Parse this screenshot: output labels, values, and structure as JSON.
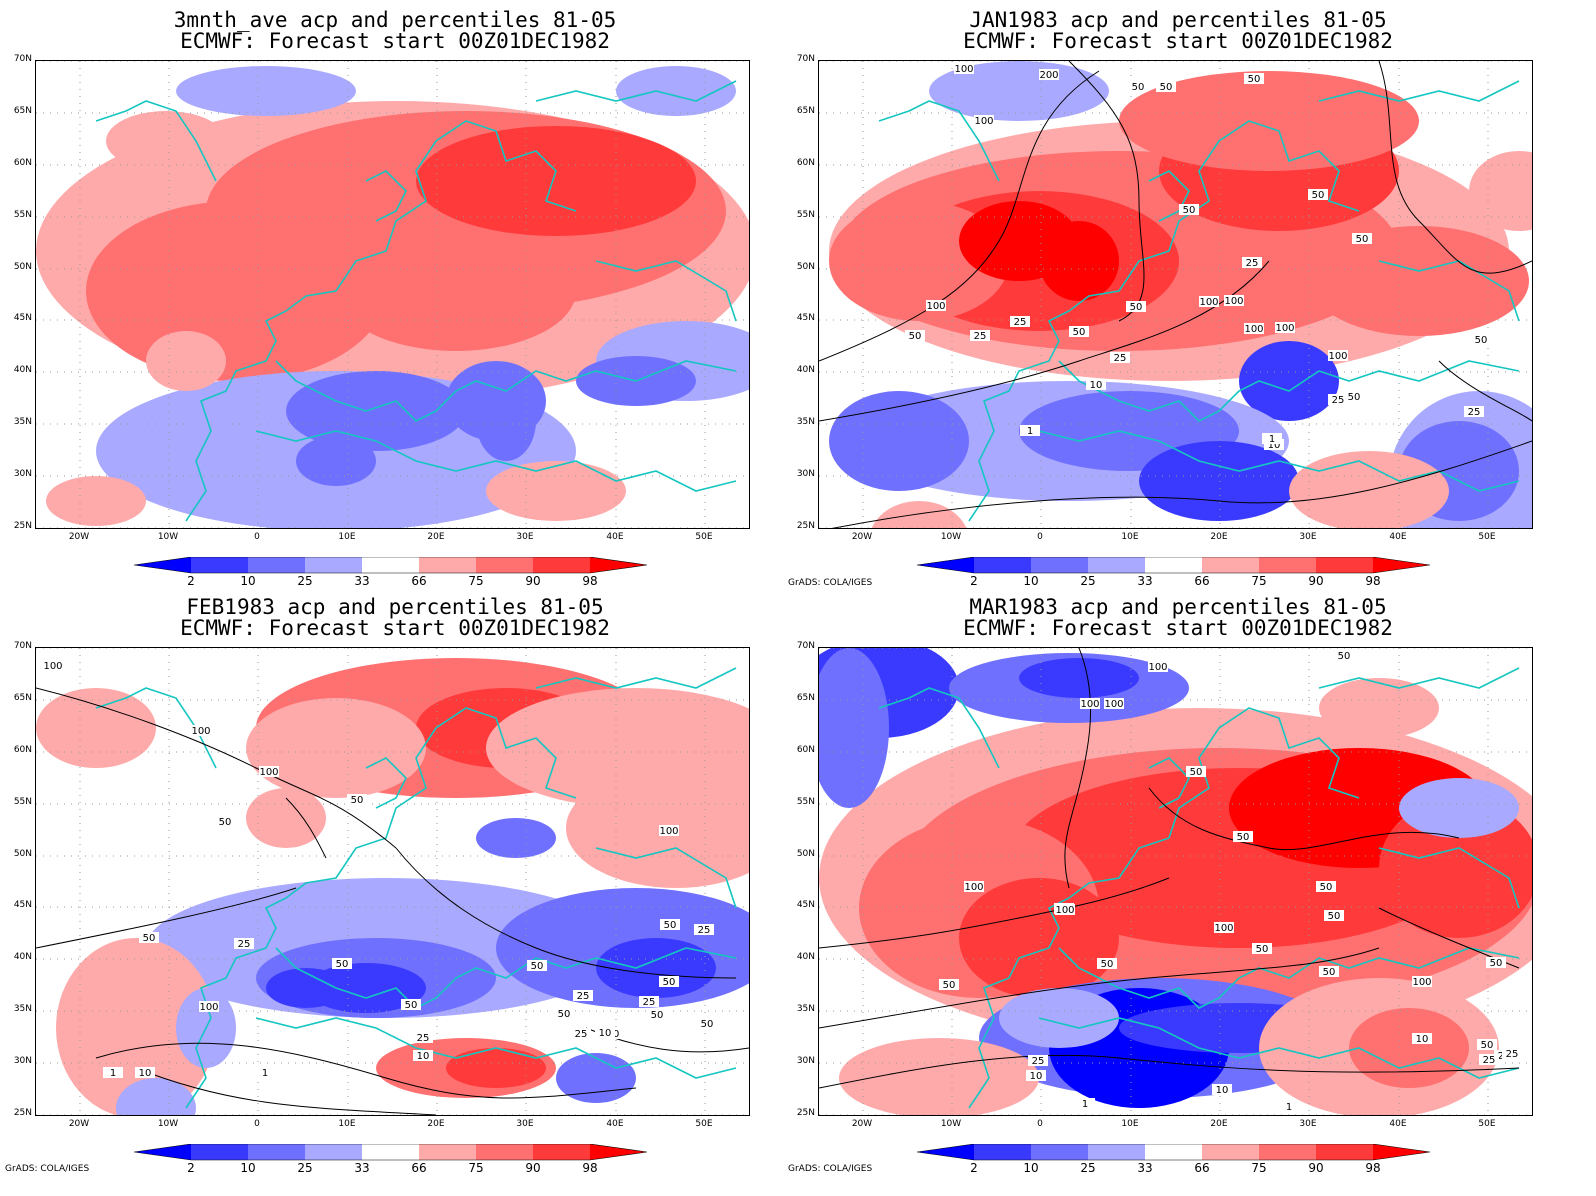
{
  "panels": [
    {
      "title_line1": "3mnth_ave acp and percentiles 81-05",
      "title_line2": "ECMWF: Forecast start 00Z01DEC1982"
    },
    {
      "title_line1": "JAN1983 acp and percentiles 81-05",
      "title_line2": "ECMWF: Forecast start 00Z01DEC1982"
    },
    {
      "title_line1": "FEB1983 acp and percentiles 81-05",
      "title_line2": "ECMWF: Forecast start 00Z01DEC1982"
    },
    {
      "title_line1": "MAR1983 acp and percentiles 81-05",
      "title_line2": "ECMWF: Forecast start 00Z01DEC1982"
    }
  ],
  "lat_labels": [
    "70N",
    "65N",
    "60N",
    "55N",
    "50N",
    "45N",
    "40N",
    "35N",
    "30N",
    "25N"
  ],
  "lon_labels": [
    "20W",
    "10W",
    "0",
    "10E",
    "20E",
    "30E",
    "40E",
    "50E"
  ],
  "colorbar": {
    "labels": [
      "2",
      "10",
      "25",
      "33",
      "66",
      "75",
      "90",
      "98"
    ],
    "colors": [
      "#0000ff",
      "#3a3aff",
      "#7070ff",
      "#a9a9ff",
      "#ffffff",
      "#ffaaaa",
      "#ff7070",
      "#ff3a3a",
      "#ff0000"
    ]
  },
  "credits": [
    "GrADS: COLA/IGES",
    "GrADS: COLA/IGES",
    "GrADS: COLA/IGES"
  ],
  "contour_labels": {
    "p1": [
      "100",
      "200",
      "50",
      "50",
      "100",
      "50",
      "50",
      "50",
      "50",
      "25",
      "100",
      "100",
      "100",
      "25",
      "50",
      "50",
      "100",
      "25",
      "50",
      "100",
      "25",
      "10",
      "100",
      "50",
      "25",
      "50",
      "25",
      "10",
      "1",
      "1"
    ],
    "p2": [
      "100",
      "100",
      "100",
      "50",
      "50",
      "50",
      "25",
      "100",
      "50",
      "50",
      "100",
      "50",
      "25",
      "50",
      "25",
      "50",
      "50",
      "10",
      "25",
      "10",
      "25",
      "25",
      "10",
      "1",
      "1",
      "10",
      "50",
      "50"
    ],
    "p3": [
      "50",
      "100",
      "100",
      "100",
      "50",
      "100",
      "50",
      "50",
      "100",
      "100",
      "100",
      "50",
      "50",
      "50",
      "50",
      "50",
      "50",
      "25",
      "25",
      "10",
      "10",
      "1",
      "1",
      "100",
      "10",
      "50",
      "25",
      "25"
    ]
  }
}
